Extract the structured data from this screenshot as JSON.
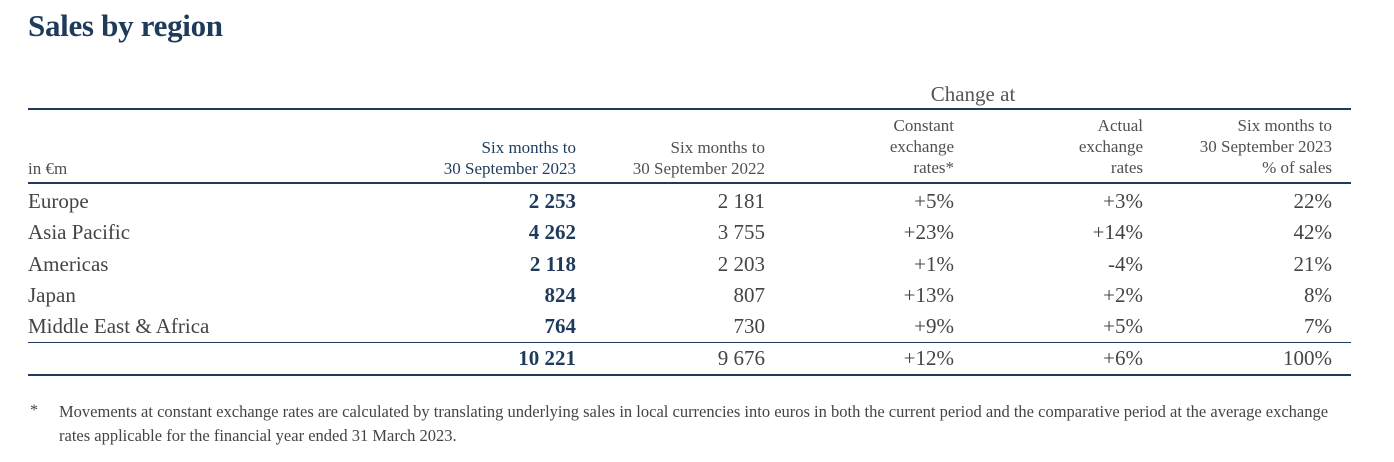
{
  "title": "Sales by region",
  "group_header": "Change at",
  "unit_label": "in €m",
  "columns": [
    {
      "line1": "Six months to",
      "line2": "30 September 2023",
      "line3": ""
    },
    {
      "line1": "Six months to",
      "line2": "30 September 2022",
      "line3": ""
    },
    {
      "line1": "Constant",
      "line2": "exchange",
      "line3": "rates*"
    },
    {
      "line1": "Actual",
      "line2": "exchange",
      "line3": "rates"
    },
    {
      "line1": "Six months to",
      "line2": "30 September 2023",
      "line3": "% of sales"
    }
  ],
  "rows": [
    {
      "region": "Europe",
      "v2023": "2 253",
      "v2022": "2 181",
      "constant": "+5%",
      "actual": "+3%",
      "share": "22%"
    },
    {
      "region": "Asia Pacific",
      "v2023": "4 262",
      "v2022": "3 755",
      "constant": "+23%",
      "actual": "+14%",
      "share": "42%"
    },
    {
      "region": "Americas",
      "v2023": "2 118",
      "v2022": "2 203",
      "constant": "+1%",
      "actual": "-4%",
      "share": "21%"
    },
    {
      "region": "Japan",
      "v2023": "824",
      "v2022": "807",
      "constant": "+13%",
      "actual": "+2%",
      "share": "8%"
    },
    {
      "region": "Middle East & Africa",
      "v2023": "764",
      "v2022": "730",
      "constant": "+9%",
      "actual": "+5%",
      "share": "7%"
    }
  ],
  "total": {
    "region": "",
    "v2023": "10 221",
    "v2022": "9 676",
    "constant": "+12%",
    "actual": "+6%",
    "share": "100%"
  },
  "footnote": {
    "marker": "*",
    "text": "Movements at constant exchange rates are calculated by translating underlying sales in local currencies into euros in both the current period and the comparative period at the average exchange rates applicable for the financial year ended 31 March 2023."
  },
  "colors": {
    "heading": "#1f3b5c",
    "text": "#404040",
    "rule": "#1f3b5c"
  }
}
